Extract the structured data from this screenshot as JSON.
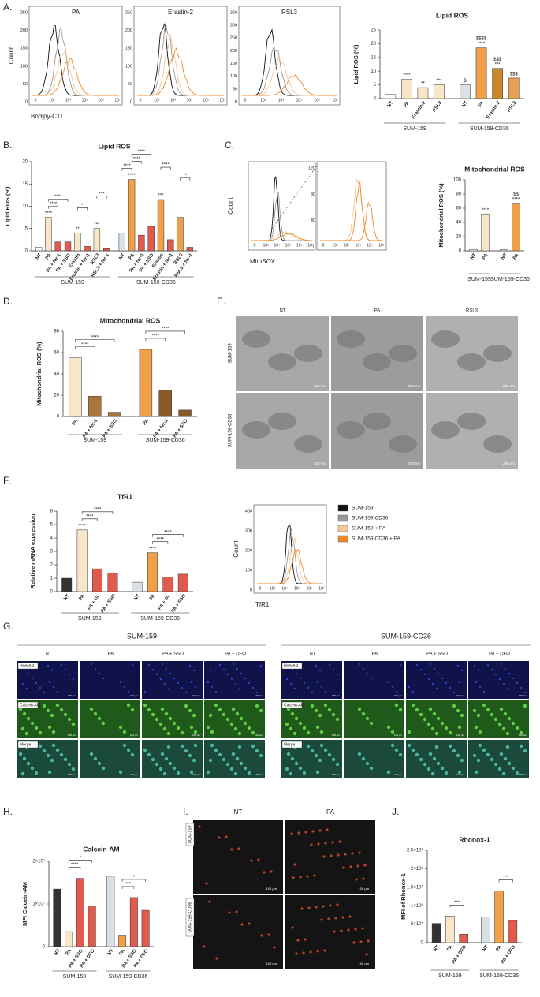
{
  "panels": [
    "A.",
    "B.",
    "C.",
    "D.",
    "E.",
    "F.",
    "G.",
    "H.",
    "I.",
    "J."
  ],
  "flow": [
    {
      "title": "PA",
      "ylabel": "Count",
      "yticks": [
        0,
        50,
        100,
        150,
        200,
        250
      ],
      "xticks": [
        0,
        {
          "value": 1000,
          "label": "10³"
        },
        {
          "value": 10000,
          "label": "10⁴"
        },
        {
          "value": 100000,
          "label": "10⁵"
        },
        {
          "value": 1000000,
          "label": "10⁶"
        },
        {
          "value": 10000000,
          "label": "10⁷"
        }
      ],
      "xlabel": "Bodipy-C11"
    },
    {
      "title": "Erastin-2",
      "yticks": [
        0,
        50,
        100,
        150,
        200,
        250
      ],
      "xticks": [
        0,
        {
          "value": 1000,
          "label": "10³"
        },
        {
          "value": 10000,
          "label": "10⁴"
        },
        {
          "value": 100000,
          "label": "10⁵"
        },
        {
          "value": 1000000,
          "label": "10⁶"
        },
        {
          "value": 10000000,
          "label": "10⁷"
        }
      ]
    },
    {
      "title": "RSL3",
      "yticks": [
        0,
        50,
        100,
        150,
        200,
        250,
        300,
        350
      ],
      "xticks": [
        0,
        {
          "value": 1000,
          "label": "10³"
        },
        {
          "value": 10000,
          "label": "10⁴"
        },
        {
          "value": 100000,
          "label": "10⁵"
        },
        {
          "value": 1000000,
          "label": "10⁶"
        },
        {
          "value": 10000000,
          "label": "10⁷"
        }
      ]
    },
    {
      "ylabel": "Count",
      "xticks": [
        0,
        {
          "value": 1000,
          "label": "10³"
        },
        {
          "value": 10000,
          "label": "10⁴"
        },
        {
          "value": 100000,
          "label": "10⁵"
        },
        {
          "value": 1000000,
          "label": "10⁶"
        },
        {
          "value": 10000000,
          "label": "10⁷"
        }
      ],
      "xlabel": "MitoSOX"
    },
    {
      "yticks": [
        0,
        40,
        80,
        120
      ],
      "xticks": [
        0,
        {
          "value": 1000,
          "label": "10³"
        },
        {
          "value": 10000,
          "label": "10⁴"
        },
        {
          "value": 100000,
          "label": "10⁵"
        },
        {
          "value": 1000000,
          "label": "10⁶"
        },
        {
          "value": 10000000,
          "label": "10⁷"
        }
      ]
    },
    {
      "ylabel": "Count",
      "yticks": [
        0,
        100,
        200,
        300,
        400
      ],
      "xticks": [
        0,
        {
          "value": 1000,
          "label": "10³"
        },
        {
          "value": 10000,
          "label": "10⁴"
        },
        {
          "value": 100000,
          "label": "10⁵"
        },
        {
          "value": 1000000,
          "label": "10⁶"
        },
        {
          "value": 10000000,
          "label": "10⁷"
        }
      ],
      "xlabel": "TfR1",
      "legend": [
        {
          "name": "SUM-159",
          "color": "#111111"
        },
        {
          "name": "SUM-159-CD36",
          "color": "#9a9a9a"
        },
        {
          "name": "SUM-159 + PA",
          "color": "#f6c79a"
        },
        {
          "name": "SUM-159-CD36 + PA",
          "color": "#f08a24"
        }
      ]
    }
  ],
  "chart_data": [
    {
      "type": "bar",
      "title": "Lipid ROS",
      "ylabel": "Lipid ROS (%)",
      "ylim": [
        0,
        25
      ],
      "yticks": [
        0,
        5,
        10,
        15,
        20,
        25
      ],
      "series": [
        {
          "name": "SUM-159",
          "categories": [
            "NT",
            "PA",
            "Erastin-2",
            "RSL3"
          ],
          "values": [
            1.5,
            7,
            4,
            5
          ],
          "colors": [
            "#ffffff",
            "#f7e6c8",
            "#f7e6c8",
            "#f7e6c8"
          ],
          "significance": [
            null,
            [
              "****"
            ],
            [
              "**"
            ],
            [
              "***"
            ]
          ]
        },
        {
          "name": "SUM-159-CD36",
          "categories": [
            "NT",
            "PA",
            "Erastin-2",
            "RSL3"
          ],
          "values": [
            5,
            18.5,
            11,
            7.5
          ],
          "colors": [
            "#d9e1e6",
            "#f0a048",
            "#c98a2c",
            "#e8a055"
          ],
          "significance": [
            [
              "$"
            ],
            [
              "$$$$",
              "****"
            ],
            [
              "$$$",
              "***"
            ],
            [
              "$$$"
            ]
          ]
        }
      ]
    },
    {
      "type": "bar",
      "title": "Lipid ROS",
      "ylabel": "Lipid ROS (%)",
      "ylim": [
        0,
        20
      ],
      "yticks": [
        0,
        5,
        10,
        15,
        20
      ],
      "series": [
        {
          "name": "SUM-159",
          "categories": [
            "NT",
            "PA",
            "PA + fer-1",
            "PA + SSO",
            "Erastin",
            "Erastin + fer-1",
            "RSL3",
            "RSL3 + fer-1"
          ],
          "values": [
            0.8,
            7.5,
            2,
            2,
            4,
            1,
            5,
            0.5
          ],
          "colors": [
            "#ffffff",
            "#f7e6c8",
            "#e05a4e",
            "#e05a4e",
            "#f7e6c8",
            "#e05a4e",
            "#f7e6c8",
            "#e05a4e"
          ],
          "significance": [
            null,
            [
              "****"
            ],
            null,
            null,
            [
              "**"
            ],
            null,
            [
              "***"
            ],
            null
          ],
          "comparisons": [
            "****",
            "****",
            "*",
            "***"
          ]
        },
        {
          "name": "SUM-159-CD36",
          "categories": [
            "NT",
            "PA",
            "PA + fer-1",
            "PA + SSO",
            "Erastin",
            "Erastin + fer-1",
            "RSL3",
            "RSL3 + fer-1"
          ],
          "values": [
            4,
            16,
            3.5,
            5.5,
            11.5,
            2.5,
            7.5,
            0.8
          ],
          "colors": [
            "#d9e1e6",
            "#f0a048",
            "#e05a4e",
            "#e05a4e",
            "#f0a048",
            "#e05a4e",
            "#f0a048",
            "#e05a4e"
          ],
          "significance": [
            null,
            [
              "****"
            ],
            null,
            null,
            [
              "***"
            ],
            null,
            null,
            null
          ],
          "comparisons": [
            "****",
            "****",
            "****",
            "****",
            "**"
          ]
        }
      ]
    },
    {
      "type": "bar",
      "title": "Mitochondrial ROS",
      "ylabel": "Mitochondrial ROS (%)",
      "ylim": [
        0,
        100
      ],
      "yticks": [
        0,
        20,
        40,
        60,
        80,
        100
      ],
      "series": [
        {
          "name": "SUM-159",
          "categories": [
            "NT",
            "PA"
          ],
          "values": [
            2,
            52
          ],
          "colors": [
            "#ffffff",
            "#f7e6c8"
          ],
          "significance": [
            null,
            [
              "****"
            ]
          ]
        },
        {
          "name": "SUM-159-CD36",
          "categories": [
            "NT",
            "PA"
          ],
          "values": [
            2,
            67
          ],
          "colors": [
            "#d9e1e6",
            "#f0a048"
          ],
          "significance": [
            null,
            [
              "$$",
              "****"
            ]
          ]
        }
      ]
    },
    {
      "type": "bar",
      "title": "Mitochondrial ROS",
      "ylabel": "Mitochondrial ROS (%)",
      "ylim": [
        0,
        80
      ],
      "yticks": [
        0,
        20,
        40,
        60,
        80
      ],
      "series": [
        {
          "name": "SUM-159",
          "categories": [
            "PA",
            "PA + fer-1",
            "PA + SSO"
          ],
          "values": [
            55,
            19,
            4
          ],
          "colors": [
            "#f7e6c8",
            "#a9763a",
            "#a9763a"
          ],
          "comparisons": [
            "****",
            "****"
          ]
        },
        {
          "name": "SUM-159-CD36",
          "categories": [
            "PA",
            "PA + fer-1",
            "PA + SSO"
          ],
          "values": [
            63,
            25,
            6
          ],
          "colors": [
            "#f0a048",
            "#8a5a2a",
            "#8a5a2a"
          ],
          "comparisons": [
            "****",
            "****"
          ]
        }
      ]
    },
    {
      "type": "bar",
      "title": "TfR1",
      "ylabel": "Relative mRNA expression",
      "ylim": [
        0,
        6
      ],
      "yticks": [
        0,
        1,
        2,
        3,
        4,
        5,
        6
      ],
      "series": [
        {
          "name": "SUM-159",
          "categories": [
            "NT",
            "PA",
            "PA + OL",
            "PA + SSO"
          ],
          "values": [
            1,
            4.6,
            1.7,
            1.4
          ],
          "colors": [
            "#333333",
            "#f7e6c8",
            "#e05a4e",
            "#e05a4e"
          ],
          "significance": [
            null,
            [
              "****"
            ],
            null,
            null
          ],
          "comparisons": [
            "****",
            "****"
          ]
        },
        {
          "name": "SUM-159-CD36",
          "categories": [
            "NT",
            "PA",
            "PA + OL",
            "PA + SSO"
          ],
          "values": [
            0.7,
            2.9,
            1.1,
            1.3
          ],
          "colors": [
            "#d9e1e6",
            "#f0a048",
            "#e05a4e",
            "#e05a4e"
          ],
          "significance": [
            null,
            [
              "****"
            ],
            null,
            null
          ],
          "comparisons": [
            "****",
            "****"
          ]
        }
      ]
    },
    {
      "type": "bar",
      "title": "Calcein-AM",
      "ylabel": "MFI Calcein-AM",
      "ylim": [
        0,
        20000000
      ],
      "yticks": [
        0,
        {
          "value": 10000000,
          "label": "1×10⁷"
        },
        {
          "value": 20000000,
          "label": "2×10⁷"
        }
      ],
      "series": [
        {
          "name": "SUM-159",
          "categories": [
            "NT",
            "PA",
            "PA + SSO",
            "PA + DFO"
          ],
          "values": [
            13500000,
            3500000,
            16000000,
            9500000
          ],
          "colors": [
            "#333333",
            "#f7e6c8",
            "#e05a4e",
            "#e05a4e"
          ],
          "comparisons": [
            "****",
            "*"
          ]
        },
        {
          "name": "SUM-159-CD36",
          "categories": [
            "NT",
            "PA",
            "PA + SSO",
            "PA + DFO"
          ],
          "values": [
            16500000,
            2500000,
            11500000,
            8500000
          ],
          "colors": [
            "#d9e1e6",
            "#f0a048",
            "#e05a4e",
            "#e05a4e"
          ],
          "comparisons": [
            "***",
            "*"
          ]
        }
      ]
    },
    {
      "type": "bar",
      "title": "Rhonox-1",
      "ylabel": "MFI of Rhonox-1",
      "ylim": [
        0,
        2500000
      ],
      "yticks": [
        0,
        {
          "value": 500000,
          "label": "5×10⁵"
        },
        {
          "value": 1000000,
          "label": "1×10⁶"
        },
        {
          "value": 1500000,
          "label": "1.5×10⁶"
        },
        {
          "value": 2000000,
          "label": "2×10⁶"
        },
        {
          "value": 2500000,
          "label": "2.5×10⁶"
        }
      ],
      "series": [
        {
          "name": "SUM-159",
          "categories": [
            "NT",
            "PA",
            "PA + DFO"
          ],
          "values": [
            520000,
            720000,
            230000
          ],
          "colors": [
            "#333333",
            "#f7e6c8",
            "#e05a4e"
          ],
          "comparisons": [
            "***"
          ]
        },
        {
          "name": "SUM-159-CD36",
          "categories": [
            "NT",
            "PA",
            "PA + DFO"
          ],
          "values": [
            700000,
            1400000,
            600000
          ],
          "colors": [
            "#d9e1e6",
            "#f0a048",
            "#e05a4e"
          ],
          "comparisons": [
            "**"
          ]
        }
      ]
    }
  ],
  "em": {
    "columns": [
      "NT",
      "PA",
      "RSL3"
    ],
    "rows": [
      "SUM-159",
      "SUM-159-CD36"
    ],
    "scale_bar": "200 nm"
  },
  "fluo": {
    "groups": [
      {
        "title": "SUM-159",
        "columns": [
          "NT",
          "PA",
          "PA + SSO",
          "PA + DFO"
        ]
      },
      {
        "title": "SUM-159-CD36",
        "columns": [
          "NT",
          "PA",
          "PA + SSO",
          "PA + DFO"
        ]
      }
    ],
    "rows": [
      "Hoechst",
      "Calcein-AM",
      "Merge"
    ],
    "scale_bar": "100 µm"
  },
  "rhonox_images": {
    "columns": [
      "NT",
      "PA"
    ],
    "rows": [
      "SUM-159",
      "SUM-159-CD36"
    ],
    "scale_bar": "100 µm"
  }
}
